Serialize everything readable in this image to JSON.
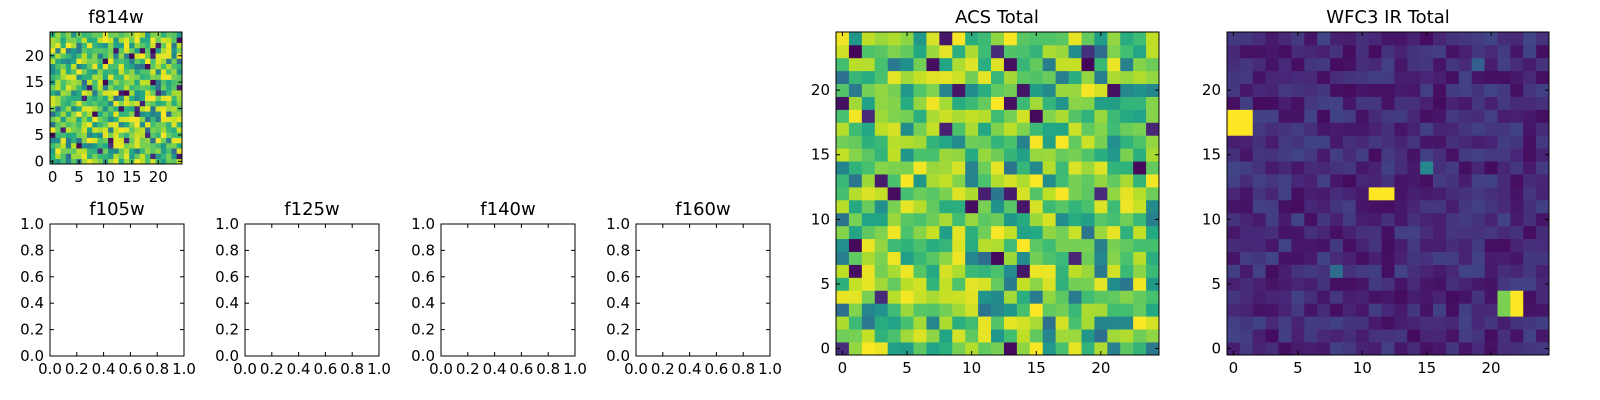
{
  "figure": {
    "background": "#ffffff"
  },
  "colormap": {
    "name": "viridis",
    "stops": [
      "#440154",
      "#482475",
      "#414487",
      "#355f8d",
      "#2a788e",
      "#21918c",
      "#22a884",
      "#44bf70",
      "#7ad151",
      "#bddf26",
      "#fde725"
    ]
  },
  "chart_data": [
    {
      "id": "f814w",
      "type": "heatmap",
      "title": "f814w",
      "grid_size": [
        25,
        25
      ],
      "xlim": [
        -0.5,
        24.5
      ],
      "ylim": [
        -0.5,
        24.5
      ],
      "xticks": [
        0,
        5,
        10,
        15,
        20
      ],
      "yticks": [
        0,
        5,
        10,
        15,
        20
      ],
      "xtick_labels": [
        "0",
        "5",
        "10",
        "15",
        "20"
      ],
      "ytick_labels": [
        "0",
        "5",
        "10",
        "15",
        "20"
      ],
      "origin": "lower",
      "pattern": "noise",
      "seed": 814,
      "value_range": [
        0,
        1
      ],
      "notes": "pixel-level noise, mostly green/yellow with scattered dark pixels"
    },
    {
      "id": "f105w",
      "type": "empty",
      "title": "f105w",
      "xlim": [
        0,
        1
      ],
      "ylim": [
        0,
        1
      ],
      "xtick_labels": [
        "0.0",
        "0.2",
        "0.4",
        "0.6",
        "0.8",
        "1.0"
      ],
      "ytick_labels": [
        "0.0",
        "0.2",
        "0.4",
        "0.6",
        "0.8",
        "1.0"
      ]
    },
    {
      "id": "f125w",
      "type": "empty",
      "title": "f125w",
      "xlim": [
        0,
        1
      ],
      "ylim": [
        0,
        1
      ],
      "xtick_labels": [
        "0.0",
        "0.2",
        "0.4",
        "0.6",
        "0.8",
        "1.0"
      ],
      "ytick_labels": [
        "0.0",
        "0.2",
        "0.4",
        "0.6",
        "0.8",
        "1.0"
      ]
    },
    {
      "id": "f140w",
      "type": "empty",
      "title": "f140w",
      "xlim": [
        0,
        1
      ],
      "ylim": [
        0,
        1
      ],
      "xtick_labels": [
        "0.0",
        "0.2",
        "0.4",
        "0.6",
        "0.8",
        "1.0"
      ],
      "ytick_labels": [
        "0.0",
        "0.2",
        "0.4",
        "0.6",
        "0.8",
        "1.0"
      ]
    },
    {
      "id": "f160w",
      "type": "empty",
      "title": "f160w",
      "xlim": [
        0,
        1
      ],
      "ylim": [
        0,
        1
      ],
      "xtick_labels": [
        "0.0",
        "0.2",
        "0.4",
        "0.6",
        "0.8",
        "1.0"
      ],
      "ytick_labels": [
        "0.0",
        "0.2",
        "0.4",
        "0.6",
        "0.8",
        "1.0"
      ]
    },
    {
      "id": "acs_total",
      "type": "heatmap",
      "title": "ACS Total",
      "grid_size": [
        25,
        25
      ],
      "xlim": [
        -0.5,
        24.5
      ],
      "ylim": [
        -0.5,
        24.5
      ],
      "xticks": [
        0,
        5,
        10,
        15,
        20
      ],
      "yticks": [
        0,
        5,
        10,
        15,
        20
      ],
      "xtick_labels": [
        "0",
        "5",
        "10",
        "15",
        "20"
      ],
      "ytick_labels": [
        "0",
        "5",
        "10",
        "15",
        "20"
      ],
      "origin": "lower",
      "pattern": "noise",
      "seed": 2024,
      "value_range": [
        0,
        1
      ],
      "notes": "pixel-level noise, mostly green/yellow with scattered dark pixels"
    },
    {
      "id": "wfc3_ir_total",
      "type": "heatmap",
      "title": "WFC3 IR Total",
      "grid_size": [
        25,
        25
      ],
      "xlim": [
        -0.5,
        24.5
      ],
      "ylim": [
        -0.5,
        24.5
      ],
      "xticks": [
        0,
        5,
        10,
        15,
        20
      ],
      "yticks": [
        0,
        5,
        10,
        15,
        20
      ],
      "xtick_labels": [
        "0",
        "5",
        "10",
        "15",
        "20"
      ],
      "ytick_labels": [
        "0",
        "5",
        "10",
        "15",
        "20"
      ],
      "origin": "lower",
      "pattern": "dark_background_with_hotspots",
      "seed": 160,
      "background_range": [
        0.03,
        0.2
      ],
      "hotspots": [
        {
          "x": 0,
          "y": 17,
          "value": 1.0
        },
        {
          "x": 0,
          "y": 18,
          "value": 1.0
        },
        {
          "x": 1,
          "y": 17,
          "value": 1.0
        },
        {
          "x": 1,
          "y": 18,
          "value": 1.0
        },
        {
          "x": 11,
          "y": 12,
          "value": 1.0
        },
        {
          "x": 12,
          "y": 12,
          "value": 1.0
        },
        {
          "x": 21,
          "y": 3,
          "value": 0.8
        },
        {
          "x": 21,
          "y": 4,
          "value": 0.8
        },
        {
          "x": 22,
          "y": 3,
          "value": 1.0
        },
        {
          "x": 22,
          "y": 4,
          "value": 1.0
        },
        {
          "x": 15,
          "y": 14,
          "value": 0.45
        },
        {
          "x": 8,
          "y": 6,
          "value": 0.35
        },
        {
          "x": 19,
          "y": 22,
          "value": 0.3
        }
      ]
    }
  ]
}
